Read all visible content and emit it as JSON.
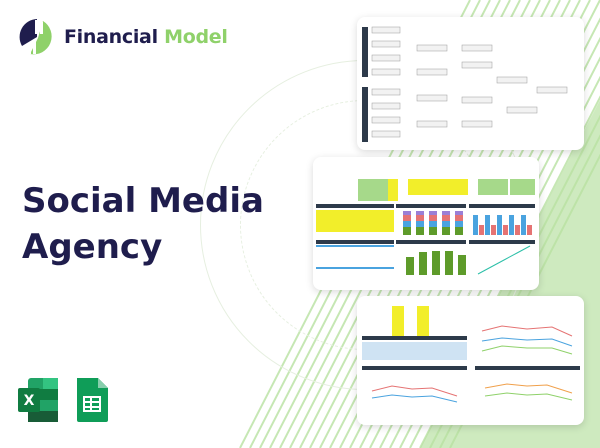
{
  "brand": {
    "name_part1": "Financial",
    "name_part2": "Model",
    "color_dark": "#1f1d4d",
    "color_green": "#8fd16a"
  },
  "headline": {
    "line1": "Social Media",
    "line2": "Agency"
  },
  "previews": [
    "org-chart-preview",
    "dashboard-preview",
    "charts-preview"
  ],
  "app_icons": [
    "excel-icon",
    "google-sheets-icon"
  ]
}
